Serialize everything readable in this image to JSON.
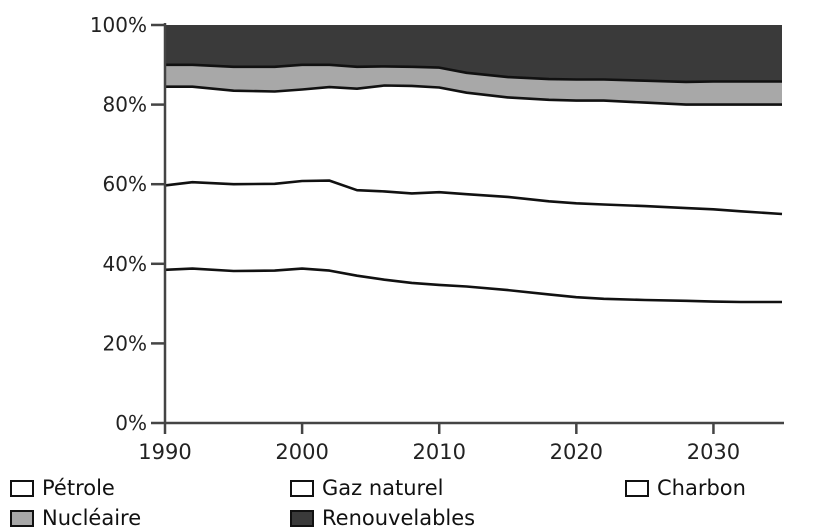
{
  "chart_data": {
    "type": "area",
    "stacked": true,
    "percent": true,
    "x": [
      1990,
      1992,
      1995,
      1998,
      2000,
      2002,
      2004,
      2006,
      2008,
      2010,
      2012,
      2015,
      2018,
      2020,
      2022,
      2025,
      2028,
      2030,
      2032,
      2035
    ],
    "series": [
      {
        "name": "Pétrole",
        "color": "#ffffff",
        "values": [
          38.5,
          38.8,
          38.2,
          38.3,
          38.8,
          38.3,
          37.0,
          36.0,
          35.2,
          34.7,
          34.3,
          33.4,
          32.3,
          31.6,
          31.2,
          30.9,
          30.7,
          30.5,
          30.4,
          30.4
        ]
      },
      {
        "name": "Gaz naturel",
        "color": "#ffffff",
        "values": [
          21.2,
          21.7,
          21.8,
          21.8,
          22.0,
          22.6,
          21.5,
          22.2,
          22.5,
          23.3,
          23.2,
          23.4,
          23.4,
          23.6,
          23.7,
          23.6,
          23.3,
          23.2,
          22.8,
          22.1
        ]
      },
      {
        "name": "Charbon",
        "color": "#ffffff",
        "values": [
          24.8,
          24.0,
          23.5,
          23.2,
          23.0,
          23.5,
          25.5,
          26.6,
          27.0,
          26.3,
          25.5,
          25.0,
          25.5,
          25.8,
          26.1,
          26.0,
          26.0,
          26.3,
          26.8,
          27.5
        ]
      },
      {
        "name": "Nucléaire",
        "color": "#a8a8a8",
        "values": [
          5.5,
          5.5,
          6.0,
          6.2,
          6.2,
          5.6,
          5.5,
          4.8,
          4.8,
          5.0,
          5.0,
          5.1,
          5.2,
          5.3,
          5.3,
          5.5,
          5.7,
          5.8,
          5.8,
          5.8
        ]
      },
      {
        "name": "Renouvelables",
        "color": "#3a3a3a",
        "values": [
          10.0,
          10.0,
          10.5,
          10.5,
          10.0,
          10.0,
          10.5,
          10.4,
          10.5,
          10.7,
          12.0,
          13.1,
          13.6,
          13.7,
          13.7,
          14.0,
          14.3,
          14.2,
          14.2,
          14.2
        ]
      }
    ],
    "title": "",
    "xlabel": "",
    "ylabel": "",
    "xlim": [
      1990,
      2035
    ],
    "ylim": [
      0,
      100
    ],
    "xticks": [
      1990,
      2000,
      2010,
      2020,
      2030
    ],
    "yticks": [
      {
        "value": 0,
        "label": "0%"
      },
      {
        "value": 20,
        "label": "20%"
      },
      {
        "value": 40,
        "label": "40%"
      },
      {
        "value": 60,
        "label": "60%"
      },
      {
        "value": 80,
        "label": "80%"
      },
      {
        "value": 100,
        "label": "100%"
      }
    ],
    "grid": false,
    "legend_position": "bottom"
  },
  "legend": {
    "items": [
      {
        "label": "Pétrole",
        "color": "#ffffff"
      },
      {
        "label": "Gaz naturel",
        "color": "#ffffff"
      },
      {
        "label": "Charbon",
        "color": "#ffffff"
      },
      {
        "label": "Nucléaire",
        "color": "#a8a8a8"
      },
      {
        "label": "Renouvelables",
        "color": "#3a3a3a"
      }
    ]
  }
}
